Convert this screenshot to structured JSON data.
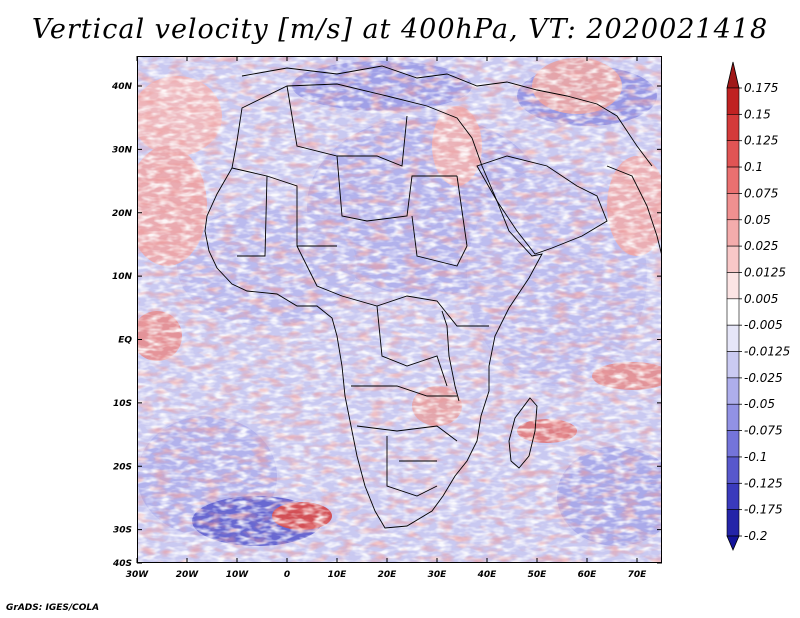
{
  "title": "Vertical velocity [m/s] at 400hPa, VT: 2020021418",
  "credit": "GrADS: IGES/COLA",
  "map": {
    "variable": "Vertical velocity",
    "units": "m/s",
    "level": "400hPa",
    "valid_time": "2020021418",
    "x_ticks": [
      "30W",
      "20W",
      "10W",
      "0",
      "10E",
      "20E",
      "30E",
      "40E",
      "50E",
      "60E",
      "70E"
    ],
    "y_ticks": [
      "40N",
      "30N",
      "20N",
      "10N",
      "EQ",
      "10S",
      "20S",
      "30S",
      "40S"
    ],
    "lon_range": [
      -30,
      75
    ],
    "lat_range": [
      -40,
      45
    ]
  },
  "legend": {
    "levels": [
      "0.175",
      "0.15",
      "0.125",
      "0.1",
      "0.075",
      "0.05",
      "0.025",
      "0.0125",
      "0.005",
      "-0.005",
      "-0.0125",
      "-0.025",
      "-0.05",
      "-0.075",
      "-0.1",
      "-0.125",
      "-0.175",
      "-0.2"
    ],
    "colors": [
      "#a01818",
      "#c02222",
      "#d43a3a",
      "#e05454",
      "#ea7070",
      "#f09090",
      "#f4acac",
      "#f8c8c8",
      "#fce4e4",
      "#ffffff",
      "#e6e6f8",
      "#cacaf2",
      "#aeaeec",
      "#9292e4",
      "#7474da",
      "#5858cc",
      "#3a3abc",
      "#2424a8",
      "#14149a"
    ]
  },
  "colors": {
    "positive": "#d43a3a",
    "negative": "#5a5ad0",
    "background_field": "#c8c8f0",
    "coastline": "#000000"
  }
}
